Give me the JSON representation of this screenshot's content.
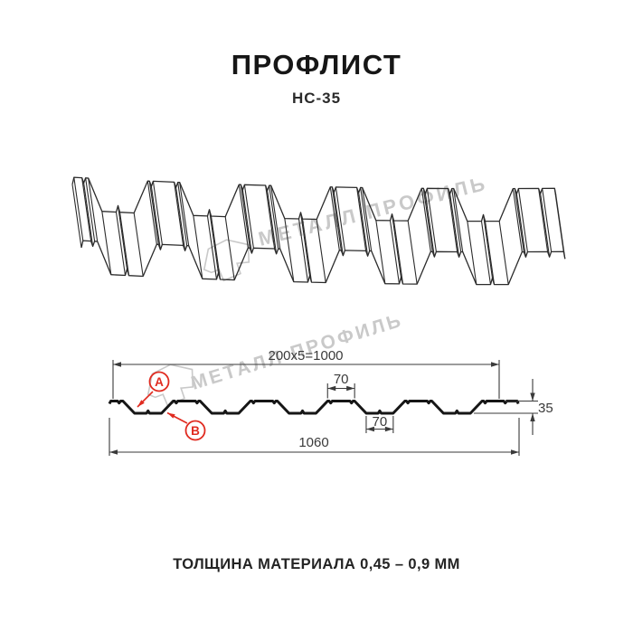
{
  "title": "ПРОФЛИСТ",
  "subtitle": "НС-35",
  "footer": "ТОЛЩИНА МАТЕРИАЛА 0,45 – 0,9 ММ",
  "watermark": {
    "text": "МЕТАЛЛ ПРОФИЛЬ",
    "color": "#c9c9c9"
  },
  "dimensions": {
    "span": "200x5=1000",
    "crest_width": "70",
    "valley_width": "70",
    "height": "35",
    "overall": "1060"
  },
  "callouts": {
    "a": "А",
    "b": "В"
  },
  "colors": {
    "red": "#e02b20",
    "line": "#2b2b2b",
    "profile": "#161616",
    "dim": "#3a3a3a",
    "watermark": "#c9c9c9"
  }
}
